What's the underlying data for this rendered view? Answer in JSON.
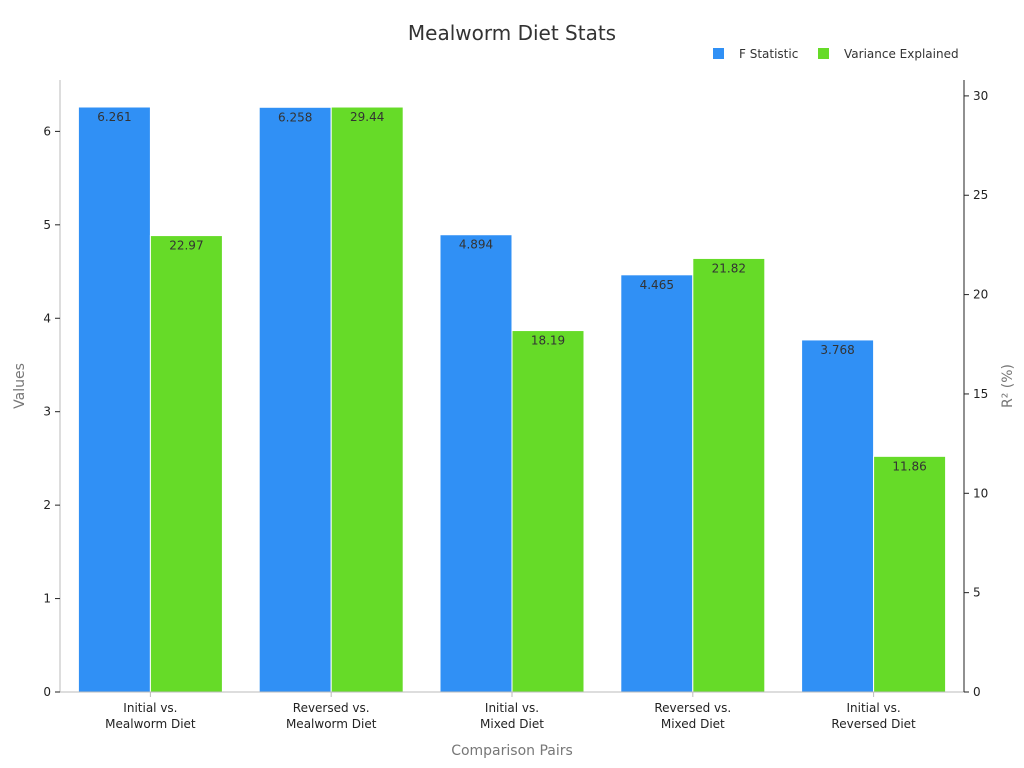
{
  "chart_data": {
    "type": "bar",
    "title": "Mealworm Diet Stats",
    "xlabel": "Comparison Pairs",
    "ylabel": "Values",
    "y2label": "R² (%)",
    "categories": [
      [
        "Initial vs.",
        "Mealworm Diet"
      ],
      [
        "Reversed vs.",
        "Mealworm Diet"
      ],
      [
        "Initial vs.",
        "Mixed Diet"
      ],
      [
        "Reversed vs.",
        "Mixed Diet"
      ],
      [
        "Initial vs.",
        "Reversed Diet"
      ]
    ],
    "series": [
      {
        "name": "F Statistic",
        "axis": "left",
        "color": "#3090f5",
        "values": [
          6.261,
          6.258,
          4.894,
          4.465,
          3.768
        ],
        "labels": [
          "6.261",
          "6.258",
          "4.894",
          "4.465",
          "3.768"
        ]
      },
      {
        "name": "Variance Explained",
        "axis": "right",
        "color": "#66db28",
        "values": [
          22.97,
          29.44,
          18.19,
          21.82,
          11.86
        ],
        "labels": [
          "22.97",
          "29.44",
          "18.19",
          "21.82",
          "11.86"
        ]
      }
    ],
    "ylim": [
      0,
      6.55
    ],
    "y2lim": [
      0,
      30.8
    ],
    "yticks": [
      0,
      1,
      2,
      3,
      4,
      5,
      6
    ],
    "y2ticks": [
      0,
      5,
      10,
      15,
      20,
      25,
      30
    ],
    "grid": false,
    "legend_position": "top-right"
  }
}
